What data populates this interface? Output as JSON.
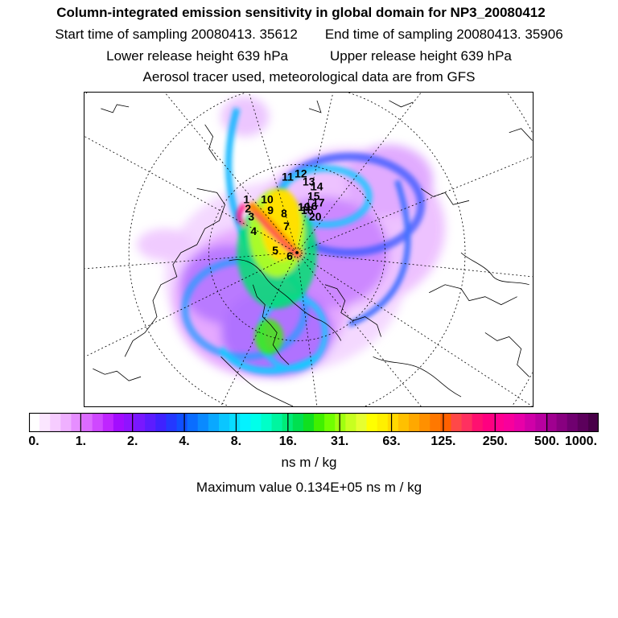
{
  "title": "Column-integrated emission sensitivity in global domain for NP3_20080412",
  "start_time": "Start time of sampling 20080413. 35612",
  "end_time": "End time of sampling 20080413. 35906",
  "lower_release": "Lower release height  639 hPa",
  "upper_release": "Upper release height  639 hPa",
  "tracer_info": "Aerosol tracer used, meteorological data are from GFS",
  "colorbar": {
    "tick_labels": [
      "0.",
      "1.",
      "2.",
      "4.",
      "8.",
      "16.",
      "31.",
      "63.",
      "125.",
      "250.",
      "500.",
      "1000."
    ],
    "colors": [
      "#ffffff",
      "#fbe6ff",
      "#f6ccff",
      "#efb0ff",
      "#e68eff",
      "#dc6bff",
      "#cf48ff",
      "#bf25ff",
      "#a30dff",
      "#8f14ff",
      "#7818ff",
      "#5c1cff",
      "#3f22ff",
      "#2438ff",
      "#1050ff",
      "#0a6dff",
      "#0a8aff",
      "#0aa8ff",
      "#0ac6ff",
      "#08ddff",
      "#04f2ff",
      "#00ffea",
      "#00ffc8",
      "#00f5a0",
      "#00ec78",
      "#00e050",
      "#10e020",
      "#40f000",
      "#70ff00",
      "#a0ff10",
      "#c8ff20",
      "#e6ff30",
      "#ffff00",
      "#fff000",
      "#ffd800",
      "#ffc000",
      "#ffa800",
      "#ff9000",
      "#ff7800",
      "#ff6000",
      "#ff4848",
      "#ff3060",
      "#ff1070",
      "#ff0080",
      "#ff0090",
      "#f8009c",
      "#e800a8",
      "#d000a8",
      "#b800a0",
      "#a00090",
      "#880080",
      "#700070",
      "#5c005c",
      "#480048"
    ]
  },
  "units": "ns m / kg",
  "max_value": "Maximum value  0.134E+05 ns m / kg",
  "markers": [
    "1",
    "2",
    "3",
    "4",
    "5",
    "6",
    "7",
    "8",
    "9",
    "10",
    "11",
    "12",
    "13",
    "14",
    "15",
    "16",
    "17",
    "18",
    "19",
    "20"
  ]
}
